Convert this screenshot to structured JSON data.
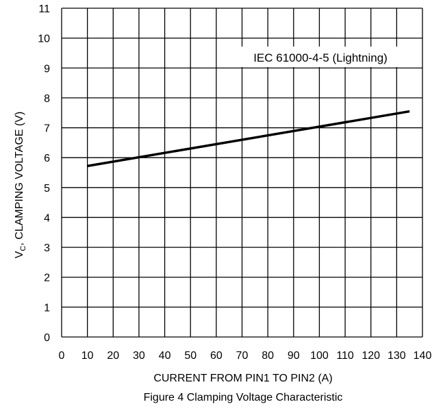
{
  "chart_data": {
    "type": "line",
    "x_label": "CURRENT FROM PIN1 TO PIN2 (A)",
    "y_label_prefix": "V",
    "y_label_subscript": "C",
    "y_label_rest": ", CLAMPING VOLTAGE (V)",
    "caption": "Figure 4 Clamping Voltage Characteristic",
    "annotation": "IEC 61000-4-5 (Lightning)",
    "xlim": [
      0,
      140
    ],
    "ylim": [
      0,
      11
    ],
    "x_ticks": [
      0,
      10,
      20,
      30,
      40,
      50,
      60,
      70,
      80,
      90,
      100,
      110,
      120,
      130,
      140
    ],
    "x_tick_labels": [
      "0",
      "10",
      "20",
      "30",
      "40",
      "50",
      "60",
      "70",
      "80",
      "90",
      "100",
      "110",
      "120",
      "130",
      "140"
    ],
    "y_ticks": [
      0,
      1,
      2,
      3,
      4,
      5,
      6,
      7,
      8,
      9,
      10,
      11
    ],
    "y_tick_labels": [
      "0",
      "1",
      "2",
      "3",
      "4",
      "5",
      "6",
      "7",
      "8",
      "9",
      "10",
      "11"
    ],
    "grid": true,
    "series": [
      {
        "x": [
          10,
          135
        ],
        "y": [
          5.72,
          7.55
        ],
        "color": "#000000"
      }
    ]
  }
}
